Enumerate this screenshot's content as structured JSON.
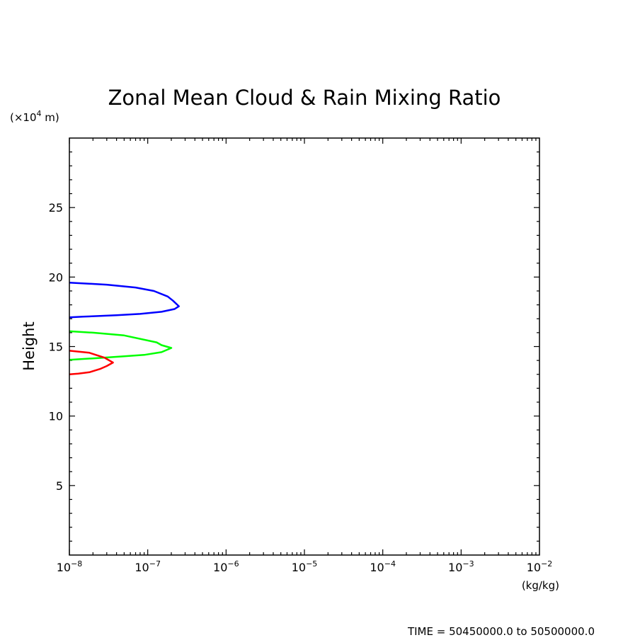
{
  "chart_data": {
    "type": "line",
    "title": "Zonal Mean Cloud & Rain Mixing Ratio",
    "ylabel": "Height",
    "y_unit_label": "(×10",
    "y_unit_exp": "4",
    "y_unit_suffix": " m)",
    "x_unit_label": "(kg/kg)",
    "x_scale": "log",
    "xlim": [
      1e-08,
      0.01
    ],
    "ylim": [
      0,
      30
    ],
    "x_tick_base": "10",
    "x_ticks": [
      {
        "value": 1e-08,
        "exp": "−8"
      },
      {
        "value": 1e-07,
        "exp": "−7"
      },
      {
        "value": 1e-06,
        "exp": "−6"
      },
      {
        "value": 1e-05,
        "exp": "−5"
      },
      {
        "value": 0.0001,
        "exp": "−4"
      },
      {
        "value": 0.001,
        "exp": "−3"
      },
      {
        "value": 0.01,
        "exp": "−2"
      }
    ],
    "y_ticks": [
      {
        "value": 5,
        "label": "5"
      },
      {
        "value": 10,
        "label": "10"
      },
      {
        "value": 15,
        "label": "15"
      },
      {
        "value": 20,
        "label": "20"
      },
      {
        "value": 25,
        "label": "25"
      }
    ],
    "grid": false,
    "series": [
      {
        "color": "#0000ff",
        "points": [
          [
            1e-08,
            19.6
          ],
          [
            3e-08,
            19.45
          ],
          [
            7e-08,
            19.25
          ],
          [
            1.2e-07,
            19.0
          ],
          [
            1.8e-07,
            18.6
          ],
          [
            2.1e-07,
            18.3
          ],
          [
            2.5e-07,
            17.9
          ],
          [
            2.2e-07,
            17.7
          ],
          [
            1.5e-07,
            17.5
          ],
          [
            8e-08,
            17.35
          ],
          [
            4e-08,
            17.25
          ],
          [
            1.5e-08,
            17.15
          ],
          [
            1e-08,
            17.1
          ]
        ]
      },
      {
        "color": "#00ff00",
        "points": [
          [
            1e-08,
            16.1
          ],
          [
            2e-08,
            16.0
          ],
          [
            5e-08,
            15.8
          ],
          [
            1.3e-07,
            15.3
          ],
          [
            1.5e-07,
            15.1
          ],
          [
            2e-07,
            14.9
          ],
          [
            1.5e-07,
            14.6
          ],
          [
            9e-08,
            14.4
          ],
          [
            5e-08,
            14.3
          ],
          [
            2e-08,
            14.15
          ],
          [
            1e-08,
            14.05
          ]
        ]
      },
      {
        "color": "#ff0000",
        "points": [
          [
            1e-08,
            14.7
          ],
          [
            1.8e-08,
            14.55
          ],
          [
            2.8e-08,
            14.2
          ],
          [
            3.6e-08,
            13.85
          ],
          [
            3e-08,
            13.6
          ],
          [
            2.5e-08,
            13.4
          ],
          [
            1.8e-08,
            13.15
          ],
          [
            1.3e-08,
            13.05
          ],
          [
            1e-08,
            13.0
          ]
        ]
      }
    ]
  },
  "footer": {
    "time_label": "TIME = 50450000.0 to 50500000.0"
  }
}
